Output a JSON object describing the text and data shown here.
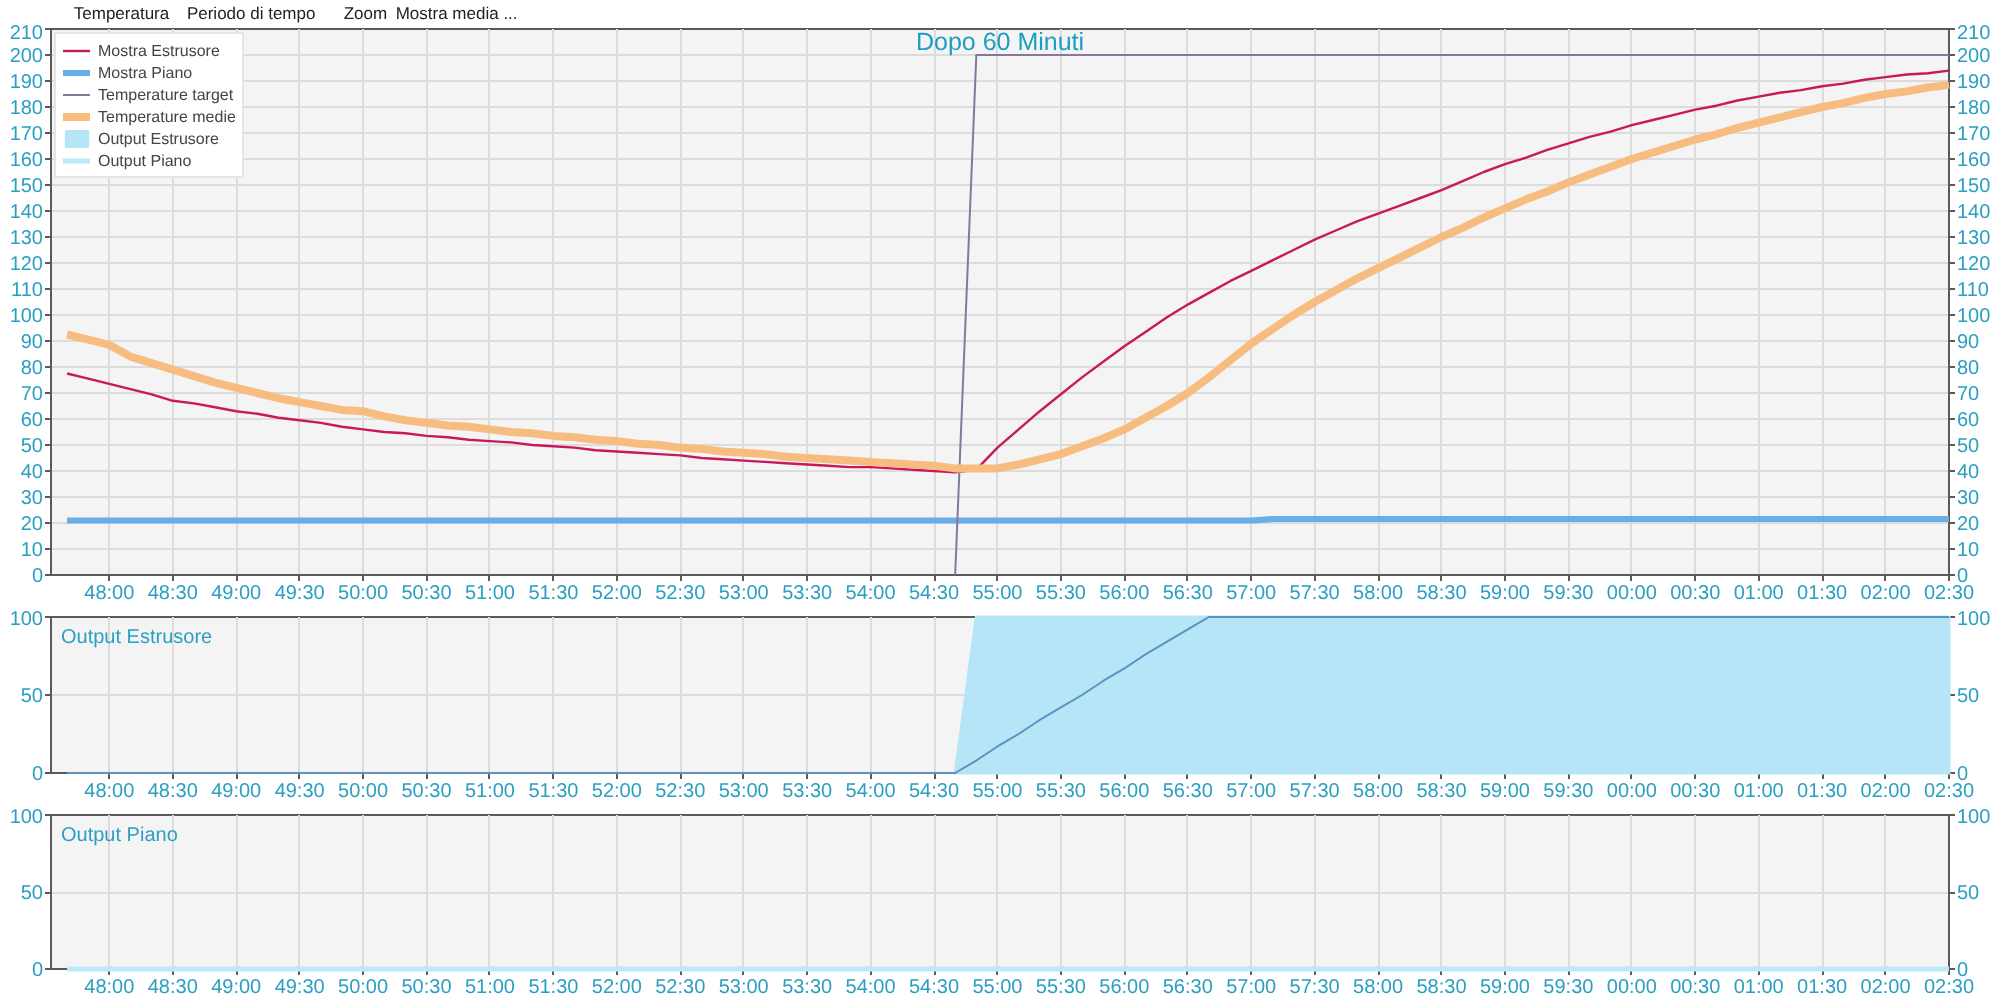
{
  "chart_data": [
    {
      "type": "line",
      "title": "Dopo 60 Minuti",
      "annotations": [
        "Temperatura",
        "Periodo di tempo",
        "Zoom",
        "Mostra media ..."
      ],
      "categories": [
        null,
        null,
        "48:00",
        null,
        null,
        "48:30",
        null,
        null,
        "49:00",
        null,
        null,
        "49:30",
        null,
        null,
        "50:00",
        null,
        null,
        "50:30",
        null,
        null,
        "51:00",
        null,
        null,
        "51:30",
        null,
        null,
        "52:00",
        null,
        null,
        "52:30",
        null,
        null,
        "53:00",
        null,
        null,
        "53:30",
        null,
        null,
        "54:00",
        null,
        null,
        "54:30",
        null,
        null,
        "55:00",
        null,
        null,
        "55:30",
        null,
        null,
        "56:00",
        null,
        null,
        "56:30",
        null,
        null,
        "57:00",
        null,
        null,
        "57:30",
        null,
        null,
        "58:00",
        null,
        null,
        "58:30",
        null,
        null,
        "59:00",
        null,
        null,
        "59:30",
        null,
        null,
        "00:00",
        null,
        null,
        "00:30",
        null,
        null,
        "01:00",
        null,
        null,
        "01:30",
        null,
        null,
        "02:00",
        null,
        null,
        "02:30"
      ],
      "ylim": [
        0,
        210
      ],
      "y2lim": [
        0,
        210
      ],
      "grid": true,
      "legend": "top left",
      "yticks": [
        0,
        10,
        20,
        30,
        40,
        50,
        60,
        70,
        80,
        90,
        100,
        110,
        120,
        130,
        140,
        150,
        160,
        170,
        180,
        190,
        200,
        210
      ],
      "y2ticks": [
        0,
        10,
        20,
        30,
        40,
        50,
        60,
        70,
        80,
        90,
        100,
        110,
        120,
        130,
        140,
        150,
        160,
        170,
        180,
        190,
        200,
        210
      ],
      "series": [
        {
          "name": "Mostra Estrusore",
          "color": "#c8195a",
          "values": [
            77.5,
            75.5,
            73.5,
            71.5,
            69.5,
            67,
            66,
            64.5,
            63,
            62,
            60.5,
            59.5,
            58.5,
            57,
            56,
            55,
            54.5,
            53.5,
            53,
            52,
            51.5,
            51,
            50,
            49.5,
            49,
            48,
            47.5,
            47,
            46.5,
            46,
            45,
            44.5,
            44,
            43.5,
            43,
            42.5,
            42,
            41.5,
            41.5,
            41,
            40.5,
            40,
            39.5,
            40.5,
            49,
            56,
            63,
            69.5,
            76,
            82,
            88,
            93.5,
            99,
            104,
            108.5,
            113,
            117,
            121,
            125,
            129,
            132.5,
            136,
            139,
            142,
            145,
            148,
            151.5,
            155,
            158,
            160.5,
            163.5,
            166,
            168.5,
            170.5,
            173,
            175,
            177,
            179,
            180.5,
            182.5,
            184,
            185.5,
            186.5,
            188,
            189,
            190.5,
            191.5,
            192.5,
            193,
            194
          ]
        },
        {
          "name": "Mostra Piano",
          "color": "#6aaee6",
          "values": [
            21,
            21,
            21,
            21,
            21,
            21,
            21,
            21,
            21,
            21,
            21,
            21,
            21,
            21,
            21,
            21,
            21,
            21,
            21,
            21,
            21,
            21,
            21,
            21,
            21,
            21,
            21,
            21,
            21,
            21,
            21,
            21,
            21,
            21,
            21,
            21,
            21,
            21,
            21,
            21,
            21,
            21,
            21,
            21,
            21,
            21,
            21,
            21,
            21,
            21,
            21,
            21,
            21,
            21,
            21,
            21,
            21,
            21.5,
            21.5,
            21.5,
            21.5,
            21.5,
            21.5,
            21.5,
            21.5,
            21.5,
            21.5,
            21.5,
            21.5,
            21.5,
            21.5,
            21.5,
            21.5,
            21.5,
            21.5,
            21.5,
            21.5,
            21.5,
            21.5,
            21.5,
            21.5,
            21.5,
            21.5,
            21.5,
            21.5,
            21.5,
            21.5,
            21.5,
            21.5,
            21.5
          ]
        },
        {
          "name": "Temperature target",
          "color": "#86789a",
          "values": [
            null,
            null,
            null,
            null,
            null,
            null,
            null,
            null,
            null,
            null,
            null,
            null,
            null,
            null,
            null,
            null,
            null,
            null,
            null,
            null,
            null,
            null,
            null,
            null,
            null,
            null,
            null,
            null,
            null,
            null,
            null,
            null,
            null,
            null,
            null,
            null,
            null,
            null,
            null,
            null,
            null,
            null,
            0,
            200,
            200,
            200,
            200,
            200,
            200,
            200,
            200,
            200,
            200,
            200,
            200,
            200,
            200,
            200,
            200,
            200,
            200,
            200,
            200,
            200,
            200,
            200,
            200,
            200,
            200,
            200,
            200,
            200,
            200,
            200,
            200,
            200,
            200,
            200,
            200,
            200,
            200,
            200,
            200,
            200,
            200,
            200,
            200,
            200,
            200,
            200
          ]
        },
        {
          "name": "Temperature medie",
          "color": "#f7bd80",
          "values": [
            92.5,
            90.5,
            88.5,
            84,
            81.5,
            79,
            76.5,
            74,
            72,
            70,
            68,
            66.5,
            65,
            63.5,
            63,
            61,
            59.5,
            58.5,
            57.5,
            57,
            56,
            55,
            54.5,
            53.5,
            53,
            52,
            51.5,
            50.5,
            50,
            49,
            48.5,
            47.5,
            47,
            46.5,
            45.5,
            45,
            44.5,
            44,
            43.5,
            43,
            42.5,
            42,
            41,
            41,
            41,
            42.5,
            44.5,
            46.5,
            49.5,
            52.5,
            56,
            60.5,
            65,
            70,
            76,
            82.5,
            89,
            94.5,
            100,
            105,
            109.5,
            114,
            118,
            122,
            126,
            130,
            133.5,
            137.5,
            141,
            144.5,
            147.5,
            151,
            154,
            157,
            160,
            162.5,
            165,
            167.5,
            169.5,
            172,
            174,
            176,
            178,
            180,
            181.5,
            183.5,
            185,
            186,
            187.5,
            188.5
          ]
        }
      ]
    },
    {
      "type": "area",
      "title": "Output Estrusore",
      "categories": [
        null,
        null,
        "48:00",
        null,
        null,
        "48:30",
        null,
        null,
        "49:00",
        null,
        null,
        "49:30",
        null,
        null,
        "50:00",
        null,
        null,
        "50:30",
        null,
        null,
        "51:00",
        null,
        null,
        "51:30",
        null,
        null,
        "52:00",
        null,
        null,
        "52:30",
        null,
        null,
        "53:00",
        null,
        null,
        "53:30",
        null,
        null,
        "54:00",
        null,
        null,
        "54:30",
        null,
        null,
        "55:00",
        null,
        null,
        "55:30",
        null,
        null,
        "56:00",
        null,
        null,
        "56:30",
        null,
        null,
        "57:00",
        null,
        null,
        "57:30",
        null,
        null,
        "58:00",
        null,
        null,
        "58:30",
        null,
        null,
        "59:00",
        null,
        null,
        "59:30",
        null,
        null,
        "00:00",
        null,
        null,
        "00:30",
        null,
        null,
        "01:00",
        null,
        null,
        "01:30",
        null,
        null,
        "02:00",
        null,
        null,
        "02:30"
      ],
      "ylim": [
        0,
        100
      ],
      "y2lim": [
        0,
        100
      ],
      "grid": true,
      "yticks": [
        0,
        50,
        100
      ],
      "y2ticks": [
        0,
        50,
        100
      ],
      "series": [
        {
          "name": "Output Estrusore",
          "color": "#b5e5f6",
          "values": [
            null,
            null,
            null,
            null,
            null,
            null,
            null,
            null,
            null,
            null,
            null,
            null,
            null,
            null,
            null,
            null,
            null,
            null,
            null,
            null,
            null,
            null,
            null,
            null,
            null,
            null,
            null,
            null,
            null,
            null,
            null,
            null,
            null,
            null,
            null,
            null,
            null,
            null,
            null,
            null,
            null,
            null,
            0,
            100,
            100,
            100,
            100,
            100,
            100,
            100,
            100,
            100,
            100,
            100,
            100,
            100,
            100,
            100,
            100,
            100,
            100,
            100,
            100,
            100,
            100,
            100,
            100,
            100,
            100,
            100,
            100,
            100,
            100,
            100,
            100,
            100,
            100,
            100,
            100,
            100,
            100,
            100,
            100,
            100,
            100,
            100,
            100,
            100,
            100,
            100
          ]
        },
        {
          "type": "line",
          "color": "#5b93c0",
          "values": [
            0,
            0,
            0,
            0,
            0,
            0,
            0,
            0,
            0,
            0,
            0,
            0,
            0,
            0,
            0,
            0,
            0,
            0,
            0,
            0,
            0,
            0,
            0,
            0,
            0,
            0,
            0,
            0,
            0,
            0,
            0,
            0,
            0,
            0,
            0,
            0,
            0,
            0,
            0,
            0,
            0,
            0,
            0,
            8,
            17,
            25,
            34,
            42,
            50,
            59,
            67,
            76,
            84,
            92,
            100,
            100,
            100,
            100,
            100,
            100,
            100,
            100,
            100,
            100,
            100,
            100,
            100,
            100,
            100,
            100,
            100,
            100,
            100,
            100,
            100,
            100,
            100,
            100,
            100,
            100,
            100,
            100,
            100,
            100,
            100,
            100,
            100,
            100,
            100,
            100
          ]
        }
      ]
    },
    {
      "type": "area",
      "title": "Output Piano",
      "categories": [
        null,
        null,
        "48:00",
        null,
        null,
        "48:30",
        null,
        null,
        "49:00",
        null,
        null,
        "49:30",
        null,
        null,
        "50:00",
        null,
        null,
        "50:30",
        null,
        null,
        "51:00",
        null,
        null,
        "51:30",
        null,
        null,
        "52:00",
        null,
        null,
        "52:30",
        null,
        null,
        "53:00",
        null,
        null,
        "53:30",
        null,
        null,
        "54:00",
        null,
        null,
        "54:30",
        null,
        null,
        "55:00",
        null,
        null,
        "55:30",
        null,
        null,
        "56:00",
        null,
        null,
        "56:30",
        null,
        null,
        "57:00",
        null,
        null,
        "57:30",
        null,
        null,
        "58:00",
        null,
        null,
        "58:30",
        null,
        null,
        "59:00",
        null,
        null,
        "59:30",
        null,
        null,
        "00:00",
        null,
        null,
        "00:30",
        null,
        null,
        "01:00",
        null,
        null,
        "01:30",
        null,
        null,
        "02:00",
        null,
        null,
        "02:30"
      ],
      "ylim": [
        0,
        100
      ],
      "y2lim": [
        0,
        100
      ],
      "grid": true,
      "yticks": [
        0,
        50,
        100
      ],
      "y2ticks": [
        0,
        50,
        100
      ],
      "series": [
        {
          "name": "Output Piano",
          "type": "line",
          "color": "#bde8f7",
          "values": [
            0,
            0,
            0,
            0,
            0,
            0,
            0,
            0,
            0,
            0,
            0,
            0,
            0,
            0,
            0,
            0,
            0,
            0,
            0,
            0,
            0,
            0,
            0,
            0,
            0,
            0,
            0,
            0,
            0,
            0,
            0,
            0,
            0,
            0,
            0,
            0,
            0,
            0,
            0,
            0,
            0,
            0,
            0,
            0,
            0,
            0,
            0,
            0,
            0,
            0,
            0,
            0,
            0,
            0,
            0,
            0,
            0,
            0,
            0,
            0,
            0,
            0,
            0,
            0,
            0,
            0,
            0,
            0,
            0,
            0,
            0,
            0,
            0,
            0,
            0,
            0,
            0,
            0,
            0,
            0,
            0,
            0,
            0,
            0,
            0,
            0,
            0,
            0,
            0,
            0
          ]
        }
      ]
    }
  ]
}
